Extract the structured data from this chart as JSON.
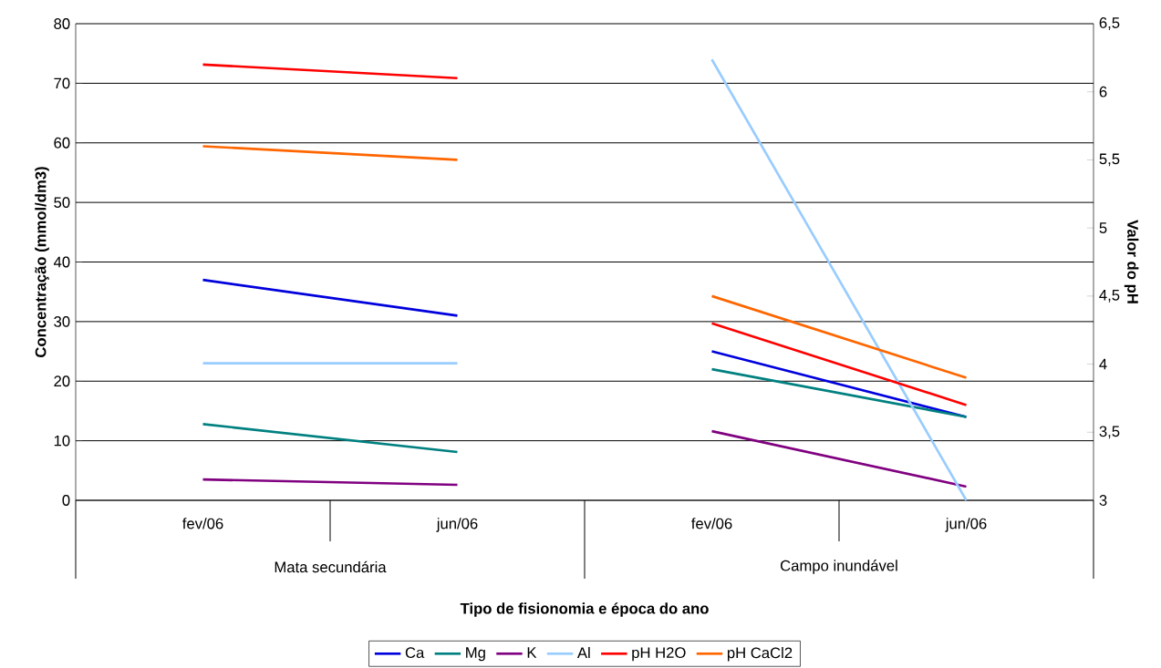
{
  "chart_data": {
    "type": "line",
    "xlabel": "Tipo de fisionomia e época do ano",
    "ylabel": "Concentração (mmol/dm3)",
    "y2label": "Valor do pH",
    "categories": [
      "fev/06",
      "jun/06",
      "fev/06",
      "jun/06"
    ],
    "annotations": [
      "Mata secundária",
      "Campo inundável"
    ],
    "series": [
      {
        "name": "Ca",
        "color": "#0000dd",
        "values": [
          37,
          31,
          25,
          14
        ]
      },
      {
        "name": "Mg",
        "color": "#008080",
        "values": [
          12.8,
          8.1,
          22,
          14
        ]
      },
      {
        "name": "K",
        "color": "#800080",
        "values": [
          3.5,
          2.6,
          11.6,
          2.3
        ]
      },
      {
        "name": "Al",
        "color": "#99ccff",
        "values": [
          23,
          23,
          74,
          0
        ]
      },
      {
        "name": "pH H2O",
        "color": "#ff0000",
        "axis": "y2",
        "values": [
          6.2,
          6.1,
          4.3,
          3.7
        ]
      },
      {
        "name": "pH CaCl2",
        "color": "#ff6600",
        "axis": "y2",
        "values": [
          5.6,
          5.5,
          4.5,
          3.9
        ]
      }
    ],
    "ylim": [
      0,
      80
    ],
    "yticks": [
      0,
      10,
      20,
      30,
      40,
      50,
      60,
      70,
      80
    ],
    "y2lim": [
      3,
      6.5
    ],
    "y2ticks": [
      3,
      {
        "value": 3.5,
        "label": "3,5"
      },
      4,
      {
        "value": 4.5,
        "label": "4,5"
      },
      5,
      {
        "value": 5.5,
        "label": "5,5"
      },
      6,
      {
        "value": 6.5,
        "label": "6,5"
      }
    ],
    "grid": "y",
    "legend": "bottom",
    "marker": "none",
    "line_style": "solid"
  }
}
